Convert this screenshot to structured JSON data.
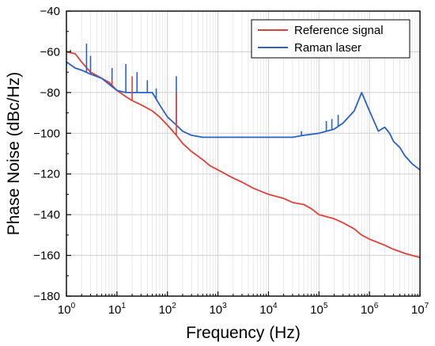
{
  "chart_data": {
    "type": "line",
    "title": "",
    "xlabel": "Frequency (Hz)",
    "ylabel": "Phase Noise (dBc/Hz)",
    "x_scale": "log",
    "xlim": [
      1,
      10000000
    ],
    "ylim": [
      -180,
      -40
    ],
    "x_ticks": [
      {
        "value": 1,
        "base": "10",
        "exp": "0"
      },
      {
        "value": 10,
        "base": "10",
        "exp": "1"
      },
      {
        "value": 100,
        "base": "10",
        "exp": "2"
      },
      {
        "value": 1000,
        "base": "10",
        "exp": "3"
      },
      {
        "value": 10000,
        "base": "10",
        "exp": "4"
      },
      {
        "value": 100000,
        "base": "10",
        "exp": "5"
      },
      {
        "value": 1000000,
        "base": "10",
        "exp": "6"
      },
      {
        "value": 10000000,
        "base": "10",
        "exp": "7"
      }
    ],
    "y_ticks": [
      {
        "value": -40,
        "label": "−40"
      },
      {
        "value": -60,
        "label": "−60"
      },
      {
        "value": -80,
        "label": "−80"
      },
      {
        "value": -100,
        "label": "−100"
      },
      {
        "value": -120,
        "label": "−120"
      },
      {
        "value": -140,
        "label": "−140"
      },
      {
        "value": -160,
        "label": "−160"
      },
      {
        "value": -180,
        "label": "−180"
      }
    ],
    "grid": true,
    "legend_position": "top-right",
    "series": [
      {
        "name": "Reference signal",
        "color": "#e0403a",
        "x": [
          1,
          1.5,
          2,
          3,
          5,
          7,
          10,
          15,
          20,
          30,
          50,
          70,
          100,
          150,
          200,
          300,
          500,
          700,
          1000,
          2000,
          3000,
          5000,
          10000,
          20000,
          30000,
          50000,
          70000,
          100000,
          200000,
          300000,
          500000,
          700000,
          1000000,
          2000000,
          3000000,
          5000000,
          7000000,
          10000000
        ],
        "y": [
          -60,
          -61,
          -65,
          -70,
          -73,
          -75,
          -79,
          -82,
          -84,
          -86,
          -89,
          -92,
          -96,
          -101,
          -105,
          -109,
          -113,
          -116,
          -118,
          -122,
          -124,
          -127,
          -130,
          -132,
          -134,
          -135,
          -137,
          -140,
          -142,
          -144,
          -147,
          -150,
          -152,
          -155,
          -157,
          -159,
          -160,
          -161
        ]
      },
      {
        "name": "Raman laser",
        "color": "#2a62c4",
        "x": [
          1,
          1.5,
          2,
          3,
          5,
          7,
          10,
          15,
          20,
          30,
          50,
          70,
          100,
          150,
          200,
          300,
          500,
          1000,
          3000,
          10000,
          30000,
          50000,
          100000,
          200000,
          300000,
          500000,
          700000,
          1000000,
          1500000,
          2000000,
          2500000,
          3000000,
          4000000,
          5000000,
          7000000,
          10000000
        ],
        "y": [
          -65,
          -68,
          -69,
          -71,
          -73,
          -76,
          -79,
          -80,
          -80,
          -80,
          -80,
          -86,
          -92,
          -96,
          -99,
          -101,
          -102,
          -102,
          -102,
          -102,
          -102,
          -101,
          -100,
          -98,
          -95,
          -89,
          -80,
          -89,
          -99,
          -97,
          -100,
          -104,
          -107,
          -111,
          -115,
          -118
        ]
      }
    ],
    "spikes": [
      {
        "series": 1,
        "x": 2.5,
        "y": -56
      },
      {
        "series": 1,
        "x": 3,
        "y": -62
      },
      {
        "series": 1,
        "x": 8,
        "y": -68
      },
      {
        "series": 1,
        "x": 15,
        "y": -66
      },
      {
        "series": 1,
        "x": 25,
        "y": -70
      },
      {
        "series": 1,
        "x": 40,
        "y": -74
      },
      {
        "series": 1,
        "x": 60,
        "y": -78
      },
      {
        "series": 1,
        "x": 150,
        "y": -72
      },
      {
        "series": 1,
        "x": 45000,
        "y": -99
      },
      {
        "series": 1,
        "x": 140000,
        "y": -94
      },
      {
        "series": 1,
        "x": 180000,
        "y": -93
      },
      {
        "series": 1,
        "x": 240000,
        "y": -91
      },
      {
        "series": 0,
        "x": 1.2,
        "y": -59
      },
      {
        "series": 0,
        "x": 8,
        "y": -74
      },
      {
        "series": 0,
        "x": 20,
        "y": -72
      },
      {
        "series": 0,
        "x": 150,
        "y": -80
      }
    ]
  }
}
